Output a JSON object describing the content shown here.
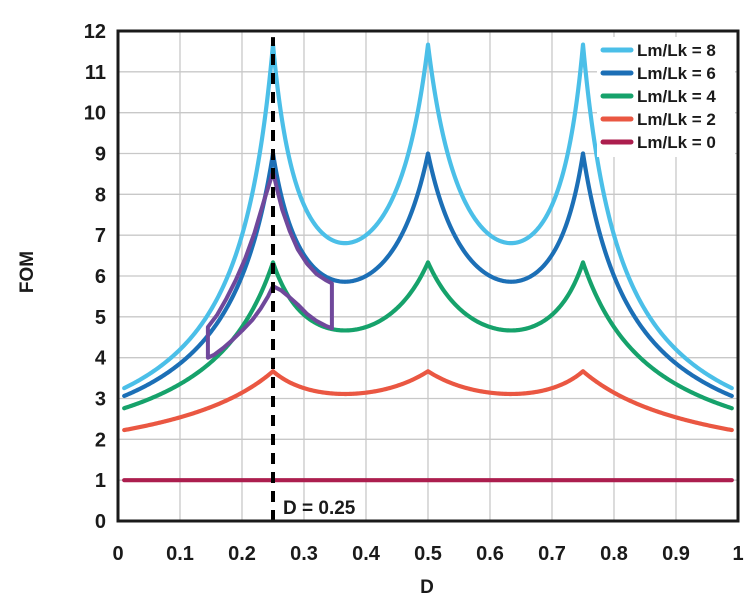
{
  "figure": {
    "background": "#ffffff",
    "frame_color": "#1a1a1a",
    "grid_color": "#c8c8c8"
  },
  "chart_data": {
    "type": "line",
    "title": "",
    "xlabel": "D",
    "ylabel": "FOM",
    "xlim": [
      0,
      1
    ],
    "ylim": [
      0,
      12
    ],
    "grid": true,
    "legend_position": "top-right",
    "x_tick_labels": [
      "0",
      "0.1",
      "0.2",
      "0.3",
      "0.4",
      "0.5",
      "0.6",
      "0.7",
      "0.8",
      "0.9",
      "1"
    ],
    "y_tick_labels": [
      "0",
      "1",
      "2",
      "3",
      "4",
      "5",
      "6",
      "7",
      "8",
      "9",
      "10",
      "11",
      "12"
    ],
    "model": {
      "name": "multiphase-coupled-inductor-figure-of-merit",
      "n_phases": 4,
      "formula": "FOM = (1+b*N)*D*(1-D) / ( D*(1-D) + b*e*(1-e)/N ), where b = (Lm/Lk)/(N-1), e = frac(N*D)",
      "d_min": 0.01,
      "d_max": 0.99,
      "d_render_step": 0.002,
      "peak_duty_cycles": [
        0.25,
        0.5,
        0.75
      ]
    },
    "series": [
      {
        "name": "Lm/Lk = 8",
        "ratio": 8,
        "color": "#4bbfe8",
        "sample_d": [
          0,
          0.05,
          0.1,
          0.15,
          0.2,
          0.25,
          0.3,
          0.35,
          0.4,
          0.45,
          0.5,
          0.55,
          0.6,
          0.65,
          0.7,
          0.75,
          0.8,
          0.85,
          0.9,
          0.95,
          1
        ],
        "sample_fom": [
          3.18,
          3.59,
          4.2,
          5.17,
          7.0,
          11.67,
          7.74,
          6.85,
          7.0,
          8.15,
          11.67,
          8.15,
          7.0,
          6.85,
          7.74,
          11.67,
          7.0,
          5.17,
          4.2,
          3.59,
          3.18
        ]
      },
      {
        "name": "Lm/Lk = 6",
        "ratio": 6,
        "color": "#1c6fb6",
        "sample_d": [
          0,
          0.05,
          0.1,
          0.15,
          0.2,
          0.25,
          0.3,
          0.35,
          0.4,
          0.45,
          0.5,
          0.55,
          0.6,
          0.65,
          0.7,
          0.75,
          0.8,
          0.85,
          0.9,
          0.95,
          1
        ],
        "sample_fom": [
          3.0,
          3.35,
          3.86,
          4.64,
          6.0,
          9.0,
          6.52,
          5.89,
          6.0,
          6.8,
          9.0,
          6.8,
          6.0,
          5.89,
          6.52,
          9.0,
          6.0,
          4.64,
          3.86,
          3.35,
          3.0
        ]
      },
      {
        "name": "Lm/Lk = 4",
        "ratio": 4,
        "color": "#16a26b",
        "sample_d": [
          0,
          0.05,
          0.1,
          0.15,
          0.2,
          0.25,
          0.3,
          0.35,
          0.4,
          0.45,
          0.5,
          0.55,
          0.6,
          0.65,
          0.7,
          0.75,
          0.8,
          0.85,
          0.9,
          0.95,
          1
        ],
        "sample_fom": [
          2.71,
          2.98,
          3.35,
          3.89,
          4.75,
          6.33,
          5.05,
          4.69,
          4.75,
          5.21,
          6.33,
          5.21,
          4.75,
          4.69,
          5.05,
          6.33,
          4.75,
          3.89,
          3.35,
          2.98,
          2.71
        ]
      },
      {
        "name": "Lm/Lk = 2",
        "ratio": 2,
        "color": "#ea5742",
        "sample_d": [
          0,
          0.05,
          0.1,
          0.15,
          0.2,
          0.25,
          0.3,
          0.35,
          0.4,
          0.45,
          0.5,
          0.55,
          0.6,
          0.65,
          0.7,
          0.75,
          0.8,
          0.85,
          0.9,
          0.95,
          1
        ],
        "sample_fom": [
          2.2,
          2.35,
          2.54,
          2.79,
          3.14,
          3.67,
          3.25,
          3.12,
          3.14,
          3.31,
          3.67,
          3.31,
          3.14,
          3.12,
          3.25,
          3.67,
          3.14,
          2.79,
          2.54,
          2.35,
          2.2
        ]
      },
      {
        "name": "Lm/Lk = 0",
        "ratio": 0,
        "color": "#ac1e4e",
        "sample_d": [
          0,
          0.05,
          0.1,
          0.15,
          0.2,
          0.25,
          0.3,
          0.35,
          0.4,
          0.45,
          0.5,
          0.55,
          0.6,
          0.65,
          0.7,
          0.75,
          0.8,
          0.85,
          0.9,
          0.95,
          1
        ],
        "sample_fom": [
          1.0,
          1.0,
          1.0,
          1.0,
          1.0,
          1.0,
          1.0,
          1.0,
          1.0,
          1.0,
          1.0,
          1.0,
          1.0,
          1.0,
          1.0,
          1.0,
          1.0,
          1.0,
          1.0,
          1.0,
          1.0
        ]
      }
    ],
    "annotations": {
      "dashed_line": {
        "d": 0.25,
        "label": "D = 0.25",
        "top_fom": 11.85,
        "color": "#000000"
      },
      "highlight_region": {
        "color": "#70489b",
        "points_d_fom": [
          [
            0.145,
            4.75
          ],
          [
            0.16,
            5.05
          ],
          [
            0.175,
            5.45
          ],
          [
            0.19,
            5.9
          ],
          [
            0.205,
            6.42
          ],
          [
            0.22,
            7.05
          ],
          [
            0.235,
            7.82
          ],
          [
            0.245,
            8.3
          ],
          [
            0.25,
            8.55
          ],
          [
            0.257,
            8.1
          ],
          [
            0.265,
            7.62
          ],
          [
            0.277,
            7.1
          ],
          [
            0.29,
            6.65
          ],
          [
            0.305,
            6.3
          ],
          [
            0.32,
            6.05
          ],
          [
            0.335,
            5.9
          ],
          [
            0.345,
            5.82
          ],
          [
            0.345,
            4.72
          ],
          [
            0.335,
            4.78
          ],
          [
            0.32,
            4.9
          ],
          [
            0.305,
            5.07
          ],
          [
            0.29,
            5.3
          ],
          [
            0.275,
            5.5
          ],
          [
            0.263,
            5.65
          ],
          [
            0.25,
            5.75
          ],
          [
            0.242,
            5.5
          ],
          [
            0.23,
            5.2
          ],
          [
            0.217,
            4.93
          ],
          [
            0.2,
            4.66
          ],
          [
            0.185,
            4.44
          ],
          [
            0.17,
            4.24
          ],
          [
            0.155,
            4.07
          ],
          [
            0.145,
            4.0
          ]
        ]
      }
    }
  }
}
